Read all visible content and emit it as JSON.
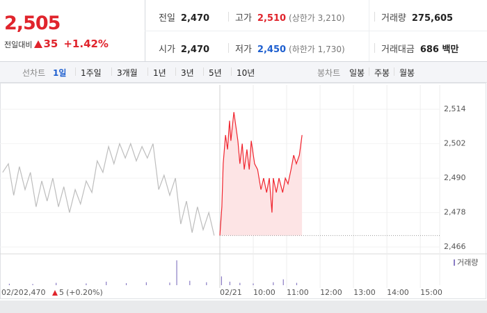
{
  "quote": {
    "price": "2,505",
    "change_label": "전일대비",
    "change": "35",
    "change_rate": "+1.42%"
  },
  "stats": [
    {
      "label": "전일",
      "value": "2,470"
    },
    {
      "label": "고가",
      "value": "2,510",
      "note": "(상한가 3,210)"
    },
    {
      "label": "거래량",
      "value": "275,605"
    },
    {
      "label": "시가",
      "value": "2,470"
    },
    {
      "label": "저가",
      "value": "2,450",
      "note": "(하한가 1,730)"
    },
    {
      "label": "거래대금",
      "value": "686 백만"
    }
  ],
  "tabs": {
    "line_label": "선차트",
    "line": [
      "1일",
      "1주일",
      "3개월",
      "1년",
      "3년",
      "5년",
      "10년"
    ],
    "active": 0,
    "candle_label": "봉차트",
    "candle": [
      "일봉",
      "주봉",
      "월봉"
    ]
  },
  "prev_close": {
    "date": "02/20",
    "price": "2,470",
    "change": "5",
    "change_rate": "(+0.20%)"
  },
  "chart_data": {
    "type": "line",
    "xlim": [
      -6.58,
      6.58
    ],
    "xticks": [
      {
        "value": 0,
        "label": "02/21"
      },
      {
        "value": 1,
        "label": "10:00"
      },
      {
        "value": 2,
        "label": "11:00"
      },
      {
        "value": 3,
        "label": "12:00"
      },
      {
        "value": 4,
        "label": "13:00"
      },
      {
        "value": 5,
        "label": "14:00"
      },
      {
        "value": 6,
        "label": "15:00"
      }
    ],
    "ylim": [
      2463.6,
      2522.5
    ],
    "yticks": [
      {
        "value": 2466,
        "label": "2,466"
      },
      {
        "value": 2478,
        "label": "2,478"
      },
      {
        "value": 2490,
        "label": "2,490"
      },
      {
        "value": 2502,
        "label": "2,502"
      },
      {
        "value": 2514,
        "label": "2,514"
      }
    ],
    "reference_line": 2470,
    "series": [
      {
        "color": "#bdbdbd",
        "x": [
          -6.5,
          -6.33,
          -6.17,
          -6.0,
          -5.83,
          -5.67,
          -5.5,
          -5.33,
          -5.17,
          -5.0,
          -4.83,
          -4.67,
          -4.5,
          -4.33,
          -4.17,
          -4.0,
          -3.83,
          -3.67,
          -3.5,
          -3.33,
          -3.17,
          -3.0,
          -2.83,
          -2.67,
          -2.5,
          -2.33,
          -2.17,
          -2.0,
          -1.83,
          -1.67,
          -1.5,
          -1.33,
          -1.17,
          -1.0,
          -0.83,
          -0.67,
          -0.5,
          -0.33,
          -0.17
        ],
        "values": [
          2492,
          2495,
          2484,
          2494,
          2486,
          2492,
          2480,
          2489,
          2482,
          2490,
          2480,
          2487,
          2478,
          2486,
          2481,
          2489,
          2485,
          2496,
          2492,
          2501,
          2495,
          2502,
          2497,
          2502,
          2496,
          2501,
          2497,
          2502,
          2486,
          2491,
          2484,
          2490,
          2474,
          2482,
          2471,
          2480,
          2472,
          2478,
          2470
        ]
      },
      {
        "color": "#f0242e",
        "fill": "#fde4e5",
        "x": [
          0,
          0.06,
          0.1,
          0.17,
          0.23,
          0.29,
          0.33,
          0.42,
          0.48,
          0.54,
          0.6,
          0.67,
          0.73,
          0.81,
          0.88,
          0.94,
          1.04,
          1.13,
          1.23,
          1.31,
          1.4,
          1.48,
          1.56,
          1.6,
          1.69,
          1.77,
          1.88,
          1.96,
          2.04,
          2.13,
          2.21,
          2.29,
          2.38,
          2.46
        ],
        "values": [
          2470,
          2480,
          2495,
          2505,
          2500,
          2510,
          2503,
          2513,
          2508,
          2503,
          2495,
          2502,
          2493,
          2500,
          2493,
          2503,
          2495,
          2493,
          2486,
          2490,
          2485,
          2490,
          2478,
          2490,
          2485,
          2490,
          2485,
          2490,
          2488,
          2493,
          2498,
          2495,
          2498,
          2505
        ]
      }
    ],
    "volume": {
      "name": "거래량",
      "color": "#8a7cc4",
      "ylim": [
        0,
        100
      ],
      "x": [
        -6.3,
        -5.6,
        -4.9,
        -4.0,
        -3.4,
        -2.8,
        -2.2,
        -1.5,
        -1.29,
        -0.9,
        -0.4,
        0.05,
        0.3,
        0.6,
        1.0,
        1.6,
        1.9,
        2.3
      ],
      "values": [
        5,
        4,
        8,
        6,
        12,
        7,
        10,
        9,
        85,
        15,
        10,
        30,
        12,
        8,
        6,
        10,
        20,
        8
      ]
    }
  }
}
